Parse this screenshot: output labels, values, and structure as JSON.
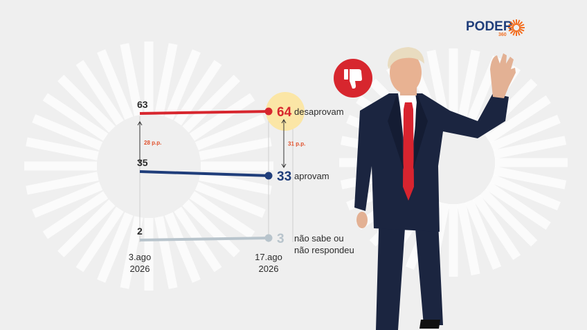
{
  "brand": {
    "name": "PODER",
    "suffix": "360",
    "color": "#1f3d7a",
    "accent": "#f36f21"
  },
  "chart_data": {
    "type": "line",
    "x": [
      "3.ago 2026",
      "17.ago 2026"
    ],
    "x_tick_labels": [
      [
        "3.ago",
        "2026"
      ],
      [
        "17.ago",
        "2026"
      ]
    ],
    "series": [
      {
        "name": "desaprovam",
        "values": [
          63,
          64
        ],
        "color": "#d7262e"
      },
      {
        "name": "aprovam",
        "values": [
          35,
          33
        ],
        "color": "#1f3d7a"
      },
      {
        "name": "não sabe ou não respondeu",
        "name_lines": [
          "não sabe ou",
          "não respondeu"
        ],
        "values": [
          2,
          3
        ],
        "color": "#b8c4cc"
      }
    ],
    "annotations": [
      {
        "text": "28 p.p.",
        "between": [
          "desaprovam",
          "aprovam"
        ],
        "at": "3.ago 2026"
      },
      {
        "text": "31 p.p.",
        "between": [
          "desaprovam",
          "aprovam"
        ],
        "at": "17.ago 2026"
      }
    ],
    "highlight": {
      "series": "desaprovam",
      "at": "17.ago 2026",
      "color": "#fbe6a6"
    },
    "ylim": [
      0,
      70
    ]
  },
  "icon": {
    "name": "thumbs-down-icon",
    "color": "#d7262e"
  },
  "photo": {
    "subject": "person-photo"
  }
}
